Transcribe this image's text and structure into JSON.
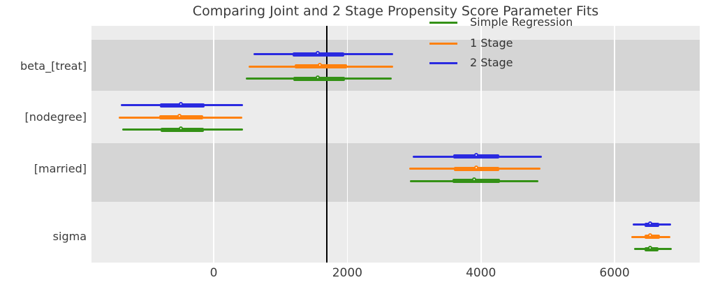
{
  "chart_data": {
    "type": "forest_interval",
    "title": "Comparing Joint and 2 Stage Propensity Score Parameter Fits",
    "x_axis": {
      "tick_values": [
        0,
        2000,
        4000,
        6000
      ],
      "tick_labels": [
        "0",
        "2000",
        "4000",
        "6000"
      ],
      "xlim": [
        -1830,
        7275
      ],
      "grid": true
    },
    "y_axis": {
      "parameters": [
        "beta_[treat]",
        "[nodegree]",
        "[married]",
        "sigma"
      ]
    },
    "reference_line": {
      "x": 1695,
      "color": "#000000"
    },
    "legend": {
      "position": "upper right",
      "entries": [
        {
          "label": "Simple Regression",
          "color": "#349116"
        },
        {
          "label": "1 Stage",
          "color": "#ff810e"
        },
        {
          "label": "2 Stage",
          "color": "#2a2ae0"
        }
      ]
    },
    "series": [
      {
        "name": "2 Stage",
        "color": "#2a2ae0",
        "row_offset": -17.5,
        "estimates": [
          {
            "param": "beta_[treat]",
            "point": 1580,
            "ci_outer": [
              590,
              2690
            ],
            "ci_inner": [
              1180,
              1950
            ]
          },
          {
            "param": "[nodegree]",
            "point": -470,
            "ci_outer": [
              -1395,
              440
            ],
            "ci_inner": [
              -810,
              -135
            ]
          },
          {
            "param": "[married]",
            "point": 3950,
            "ci_outer": [
              2980,
              4910
            ],
            "ci_inner": [
              3585,
              4270
            ]
          },
          {
            "param": "sigma",
            "point": 6555,
            "ci_outer": [
              6270,
              6845
            ],
            "ci_inner": [
              6450,
              6670
            ]
          }
        ]
      },
      {
        "name": "1 Stage",
        "color": "#ff810e",
        "row_offset": 0,
        "estimates": [
          {
            "param": "beta_[treat]",
            "point": 1605,
            "ci_outer": [
              520,
              2690
            ],
            "ci_inner": [
              1215,
              1995
            ]
          },
          {
            "param": "[nodegree]",
            "point": -490,
            "ci_outer": [
              -1420,
              425
            ],
            "ci_inner": [
              -820,
              -155
            ]
          },
          {
            "param": "[married]",
            "point": 3950,
            "ci_outer": [
              2925,
              4890
            ],
            "ci_inner": [
              3595,
              4270
            ]
          },
          {
            "param": "sigma",
            "point": 6555,
            "ci_outer": [
              6250,
              6835
            ],
            "ci_inner": [
              6445,
              6680
            ]
          }
        ]
      },
      {
        "name": "Simple Regression",
        "color": "#349116",
        "row_offset": 17.5,
        "estimates": [
          {
            "param": "beta_[treat]",
            "point": 1580,
            "ci_outer": [
              485,
              2660
            ],
            "ci_inner": [
              1190,
              1960
            ]
          },
          {
            "param": "[nodegree]",
            "point": -475,
            "ci_outer": [
              -1370,
              440
            ],
            "ci_inner": [
              -795,
              -150
            ]
          },
          {
            "param": "[married]",
            "point": 3920,
            "ci_outer": [
              2935,
              4860
            ],
            "ci_inner": [
              3570,
              4285
            ]
          },
          {
            "param": "sigma",
            "point": 6550,
            "ci_outer": [
              6290,
              6860
            ],
            "ci_inner": [
              6445,
              6660
            ]
          }
        ]
      }
    ],
    "styling": {
      "plot_background": "#ececec",
      "band_color": "#d5d5d5",
      "grid_color": "#ffffff",
      "text_color": "#3c3c3c"
    }
  }
}
